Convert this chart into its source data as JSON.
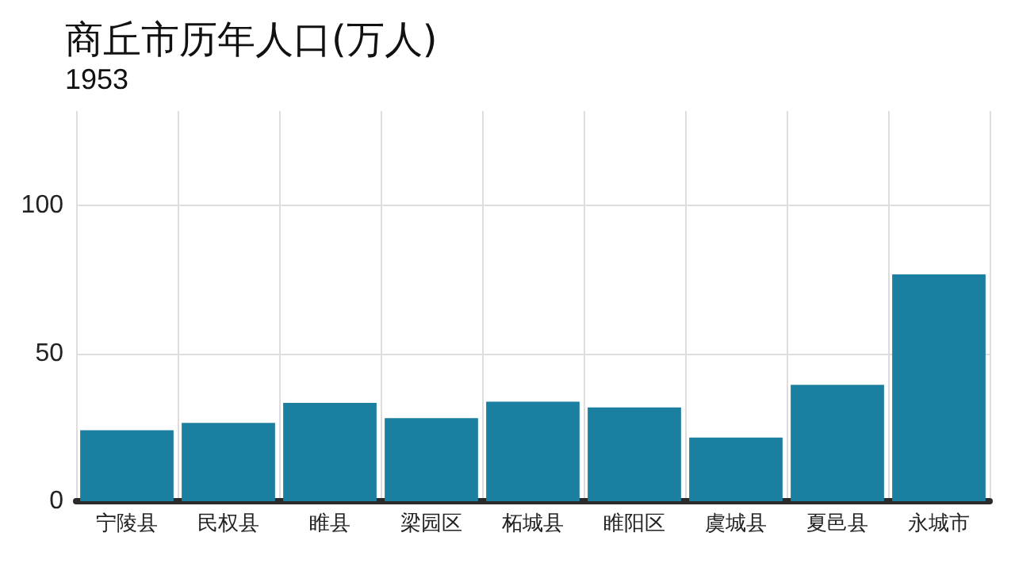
{
  "chart_data": {
    "type": "bar",
    "title": "商丘市历年人口(万人)",
    "subtitle": "1953",
    "categories": [
      "宁陵县",
      "民权县",
      "睢县",
      "梁园区",
      "柘城县",
      "睢阳区",
      "虞城县",
      "夏邑县",
      "永城市"
    ],
    "values": [
      24,
      26.5,
      33.3,
      28.1,
      33.7,
      31.7,
      21.5,
      39.4,
      76.7
    ],
    "color": "#1a7fa0",
    "ylim": [
      0,
      132
    ],
    "yticks": [
      0,
      50,
      100
    ],
    "grid": true
  }
}
